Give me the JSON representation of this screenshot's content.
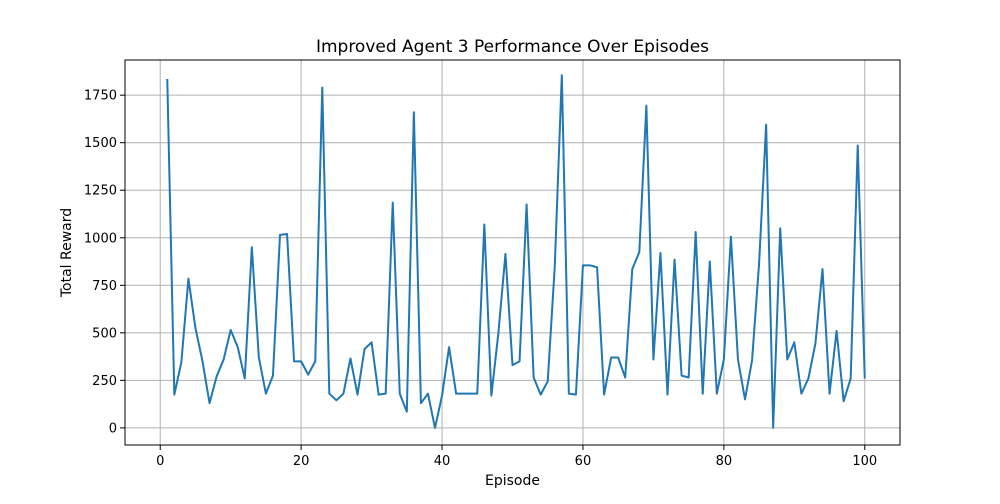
{
  "chart_data": {
    "type": "line",
    "title": "Improved Agent 3 Performance Over Episodes",
    "xlabel": "Episode",
    "ylabel": "Total Reward",
    "xlim": [
      -5,
      105
    ],
    "ylim": [
      -90,
      1935
    ],
    "x_ticks": [
      0,
      20,
      40,
      60,
      80,
      100
    ],
    "y_ticks": [
      0,
      250,
      500,
      750,
      1000,
      1250,
      1500,
      1750
    ],
    "grid": true,
    "series": [
      {
        "color": "#1f77b4",
        "x": [
          1,
          2,
          3,
          4,
          5,
          6,
          7,
          8,
          9,
          10,
          11,
          12,
          13,
          14,
          15,
          16,
          17,
          18,
          19,
          20,
          21,
          22,
          23,
          24,
          25,
          26,
          27,
          28,
          29,
          30,
          31,
          32,
          33,
          34,
          35,
          36,
          37,
          38,
          39,
          40,
          41,
          42,
          43,
          44,
          45,
          46,
          47,
          48,
          49,
          50,
          51,
          52,
          53,
          54,
          55,
          56,
          57,
          58,
          59,
          60,
          61,
          62,
          63,
          64,
          65,
          66,
          67,
          68,
          69,
          70,
          71,
          72,
          73,
          74,
          75,
          76,
          77,
          78,
          79,
          80,
          81,
          82,
          83,
          84,
          85,
          86,
          87,
          88,
          89,
          90,
          91,
          92,
          93,
          94,
          95,
          96,
          97,
          98,
          99,
          100
        ],
        "values": [
          1835,
          175,
          345,
          785,
          525,
          350,
          130,
          270,
          360,
          515,
          425,
          260,
          950,
          370,
          180,
          275,
          1015,
          1020,
          350,
          350,
          280,
          350,
          1790,
          180,
          145,
          180,
          365,
          175,
          415,
          450,
          175,
          180,
          1185,
          180,
          85,
          1660,
          130,
          180,
          0,
          170,
          425,
          180,
          180,
          180,
          180,
          1070,
          170,
          500,
          915,
          330,
          350,
          1175,
          265,
          175,
          245,
          850,
          1855,
          180,
          175,
          855,
          855,
          845,
          175,
          370,
          370,
          265,
          835,
          925,
          1695,
          360,
          920,
          175,
          885,
          275,
          265,
          1030,
          180,
          875,
          180,
          360,
          1005,
          360,
          150,
          355,
          865,
          1595,
          0,
          1050,
          360,
          450,
          180,
          260,
          445,
          835,
          180,
          510,
          140,
          260,
          1485,
          260
        ]
      }
    ]
  }
}
